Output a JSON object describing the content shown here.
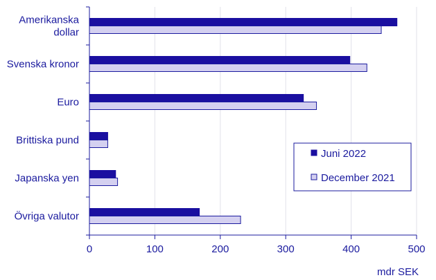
{
  "chart_data": {
    "type": "bar",
    "orientation": "horizontal",
    "categories": [
      [
        "Amerikanska",
        "dollar"
      ],
      [
        "Svenska kronor"
      ],
      [
        "Euro"
      ],
      [
        "Brittiska pund"
      ],
      [
        "Japanska yen"
      ],
      [
        "Övriga valutor"
      ]
    ],
    "series": [
      {
        "name": "Juni 2022",
        "color": "#1a0fa0",
        "values": [
          470,
          398,
          327,
          28,
          40,
          168
        ]
      },
      {
        "name": "December 2021",
        "color": "#d4d0f0",
        "values": [
          446,
          424,
          347,
          28,
          43,
          231
        ]
      }
    ],
    "xlim": [
      0,
      500
    ],
    "xticks": [
      0,
      100,
      200,
      300,
      400,
      500
    ],
    "xlabel": "mdr SEK",
    "grid": "vertical",
    "legend_position": "right"
  }
}
